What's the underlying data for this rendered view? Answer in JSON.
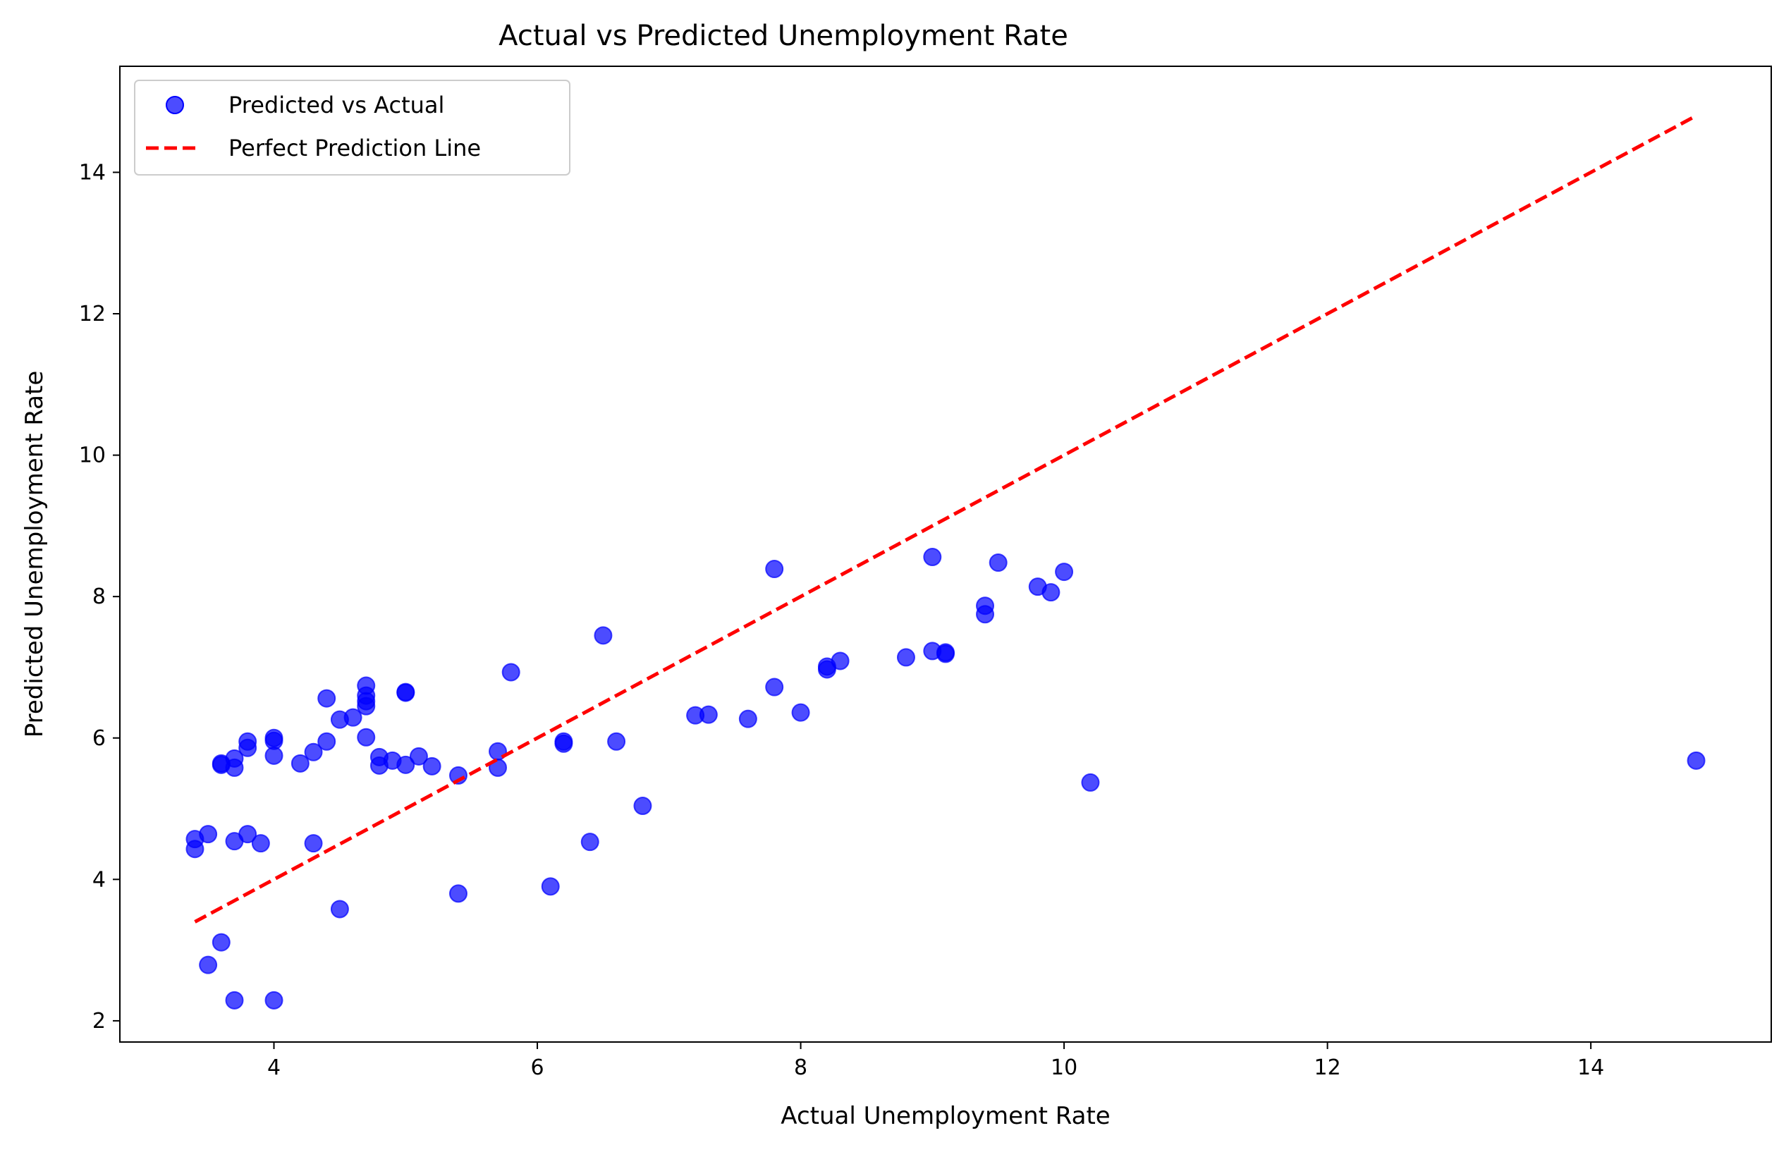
{
  "chart_data": {
    "type": "scatter",
    "title": "Actual vs Predicted Unemployment Rate",
    "xlabel": "Actual Unemployment Rate",
    "ylabel": "Predicted Unemployment Rate",
    "xlim": [
      2.83,
      15.37
    ],
    "ylim": [
      1.7,
      15.5
    ],
    "xticks": [
      4,
      6,
      8,
      10,
      12,
      14
    ],
    "yticks": [
      2,
      4,
      6,
      8,
      10,
      12,
      14
    ],
    "grid": false,
    "legend_position": "top-left",
    "series": [
      {
        "name": "Predicted vs Actual",
        "kind": "scatter",
        "color": "#0000ff",
        "points": [
          [
            3.4,
            4.57
          ],
          [
            3.4,
            4.43
          ],
          [
            3.5,
            4.64
          ],
          [
            3.5,
            2.79
          ],
          [
            3.6,
            5.64
          ],
          [
            3.6,
            5.62
          ],
          [
            3.6,
            3.11
          ],
          [
            3.7,
            5.71
          ],
          [
            3.7,
            5.58
          ],
          [
            3.7,
            4.54
          ],
          [
            3.7,
            2.29
          ],
          [
            3.8,
            5.95
          ],
          [
            3.8,
            5.86
          ],
          [
            3.8,
            4.64
          ],
          [
            3.9,
            4.51
          ],
          [
            4.0,
            6.0
          ],
          [
            4.0,
            5.96
          ],
          [
            4.0,
            5.75
          ],
          [
            4.0,
            2.29
          ],
          [
            4.2,
            5.64
          ],
          [
            4.3,
            5.8
          ],
          [
            4.3,
            4.51
          ],
          [
            4.4,
            6.56
          ],
          [
            4.4,
            5.95
          ],
          [
            4.5,
            6.26
          ],
          [
            4.5,
            3.58
          ],
          [
            4.6,
            6.29
          ],
          [
            4.7,
            6.74
          ],
          [
            4.7,
            6.6
          ],
          [
            4.7,
            6.52
          ],
          [
            4.7,
            6.45
          ],
          [
            4.7,
            6.01
          ],
          [
            4.8,
            5.73
          ],
          [
            4.8,
            5.61
          ],
          [
            4.9,
            5.68
          ],
          [
            5.0,
            6.65
          ],
          [
            5.0,
            6.64
          ],
          [
            5.0,
            5.62
          ],
          [
            5.1,
            5.74
          ],
          [
            5.2,
            5.6
          ],
          [
            5.4,
            5.47
          ],
          [
            5.4,
            3.8
          ],
          [
            5.7,
            5.81
          ],
          [
            5.7,
            5.58
          ],
          [
            5.8,
            6.93
          ],
          [
            6.1,
            3.9
          ],
          [
            6.2,
            5.95
          ],
          [
            6.2,
            5.92
          ],
          [
            6.4,
            4.53
          ],
          [
            6.5,
            7.45
          ],
          [
            6.6,
            5.95
          ],
          [
            6.8,
            5.04
          ],
          [
            7.2,
            6.32
          ],
          [
            7.3,
            6.33
          ],
          [
            7.6,
            6.27
          ],
          [
            7.8,
            8.39
          ],
          [
            7.8,
            6.72
          ],
          [
            8.0,
            6.36
          ],
          [
            8.2,
            7.01
          ],
          [
            8.2,
            6.97
          ],
          [
            8.3,
            7.09
          ],
          [
            8.8,
            7.14
          ],
          [
            9.0,
            8.56
          ],
          [
            9.0,
            7.23
          ],
          [
            9.1,
            7.21
          ],
          [
            9.1,
            7.19
          ],
          [
            9.4,
            7.87
          ],
          [
            9.4,
            7.75
          ],
          [
            9.5,
            8.48
          ],
          [
            9.8,
            8.14
          ],
          [
            9.9,
            8.06
          ],
          [
            10.0,
            8.35
          ],
          [
            10.2,
            5.37
          ],
          [
            14.8,
            5.68
          ]
        ]
      },
      {
        "name": "Perfect Prediction Line",
        "kind": "line",
        "color": "#ff0000",
        "dash": "dashed",
        "points": [
          [
            3.4,
            3.4
          ],
          [
            14.8,
            14.8
          ]
        ]
      }
    ]
  }
}
